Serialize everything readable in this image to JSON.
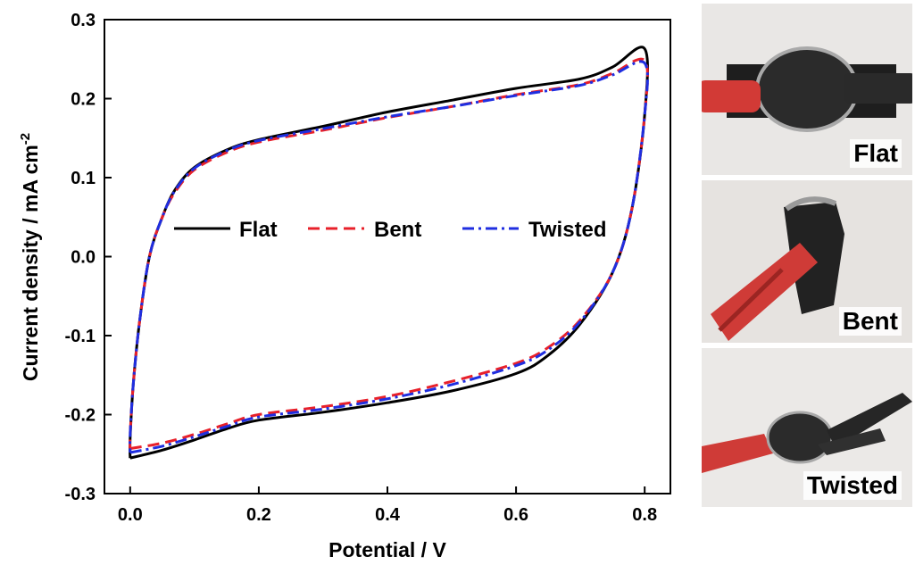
{
  "chart_data": {
    "type": "line",
    "xlabel": "Potential / V",
    "ylabel": "Current density / mA cm",
    "ylabel_superscript": "-2",
    "xlim": [
      -0.04,
      0.84
    ],
    "ylim": [
      -0.3,
      0.3
    ],
    "xticks": [
      "0.0",
      "0.2",
      "0.4",
      "0.6",
      "0.8"
    ],
    "yticks": [
      "-0.3",
      "-0.2",
      "-0.1",
      "0.0",
      "0.1",
      "0.2",
      "0.3"
    ],
    "legend_position": "center",
    "series": [
      {
        "name": "Flat",
        "color": "#000000",
        "style": "solid",
        "points": [
          [
            0.0,
            -0.255
          ],
          [
            0.05,
            -0.245
          ],
          [
            0.1,
            -0.232
          ],
          [
            0.15,
            -0.218
          ],
          [
            0.2,
            -0.207
          ],
          [
            0.3,
            -0.197
          ],
          [
            0.4,
            -0.185
          ],
          [
            0.5,
            -0.17
          ],
          [
            0.6,
            -0.148
          ],
          [
            0.65,
            -0.125
          ],
          [
            0.7,
            -0.085
          ],
          [
            0.75,
            -0.02
          ],
          [
            0.78,
            0.06
          ],
          [
            0.8,
            0.18
          ],
          [
            0.8,
            0.263
          ],
          [
            0.75,
            0.24
          ],
          [
            0.7,
            0.225
          ],
          [
            0.6,
            0.213
          ],
          [
            0.5,
            0.198
          ],
          [
            0.4,
            0.183
          ],
          [
            0.3,
            0.165
          ],
          [
            0.2,
            0.148
          ],
          [
            0.15,
            0.135
          ],
          [
            0.1,
            0.113
          ],
          [
            0.07,
            0.085
          ],
          [
            0.05,
            0.05
          ],
          [
            0.03,
            0.0
          ],
          [
            0.015,
            -0.08
          ],
          [
            0.005,
            -0.16
          ],
          [
            0.0,
            -0.23
          ],
          [
            0.0,
            -0.255
          ]
        ]
      },
      {
        "name": "Bent",
        "color": "#e8202a",
        "style": "dashed",
        "points": [
          [
            0.0,
            -0.243
          ],
          [
            0.05,
            -0.236
          ],
          [
            0.1,
            -0.225
          ],
          [
            0.15,
            -0.212
          ],
          [
            0.2,
            -0.2
          ],
          [
            0.3,
            -0.19
          ],
          [
            0.4,
            -0.177
          ],
          [
            0.5,
            -0.158
          ],
          [
            0.6,
            -0.135
          ],
          [
            0.65,
            -0.115
          ],
          [
            0.7,
            -0.08
          ],
          [
            0.75,
            -0.02
          ],
          [
            0.78,
            0.06
          ],
          [
            0.8,
            0.18
          ],
          [
            0.8,
            0.248
          ],
          [
            0.75,
            0.232
          ],
          [
            0.7,
            0.218
          ],
          [
            0.6,
            0.205
          ],
          [
            0.5,
            0.19
          ],
          [
            0.4,
            0.176
          ],
          [
            0.3,
            0.16
          ],
          [
            0.2,
            0.145
          ],
          [
            0.15,
            0.132
          ],
          [
            0.1,
            0.11
          ],
          [
            0.07,
            0.082
          ],
          [
            0.05,
            0.05
          ],
          [
            0.03,
            0.0
          ],
          [
            0.015,
            -0.08
          ],
          [
            0.005,
            -0.16
          ],
          [
            0.0,
            -0.225
          ],
          [
            0.0,
            -0.243
          ]
        ]
      },
      {
        "name": "Twisted",
        "color": "#1f2ee0",
        "style": "dashdot",
        "points": [
          [
            0.0,
            -0.248
          ],
          [
            0.05,
            -0.24
          ],
          [
            0.1,
            -0.228
          ],
          [
            0.15,
            -0.215
          ],
          [
            0.2,
            -0.203
          ],
          [
            0.3,
            -0.193
          ],
          [
            0.4,
            -0.18
          ],
          [
            0.5,
            -0.162
          ],
          [
            0.6,
            -0.138
          ],
          [
            0.65,
            -0.118
          ],
          [
            0.7,
            -0.082
          ],
          [
            0.75,
            -0.02
          ],
          [
            0.78,
            0.06
          ],
          [
            0.8,
            0.18
          ],
          [
            0.8,
            0.245
          ],
          [
            0.75,
            0.23
          ],
          [
            0.7,
            0.217
          ],
          [
            0.6,
            0.204
          ],
          [
            0.5,
            0.19
          ],
          [
            0.4,
            0.177
          ],
          [
            0.3,
            0.162
          ],
          [
            0.2,
            0.147
          ],
          [
            0.15,
            0.134
          ],
          [
            0.1,
            0.112
          ],
          [
            0.07,
            0.084
          ],
          [
            0.05,
            0.05
          ],
          [
            0.03,
            0.0
          ],
          [
            0.015,
            -0.08
          ],
          [
            0.005,
            -0.16
          ],
          [
            0.0,
            -0.225
          ],
          [
            0.0,
            -0.248
          ]
        ]
      }
    ]
  },
  "photos": [
    {
      "label": "Flat"
    },
    {
      "label": "Bent"
    },
    {
      "label": "Twisted"
    }
  ]
}
